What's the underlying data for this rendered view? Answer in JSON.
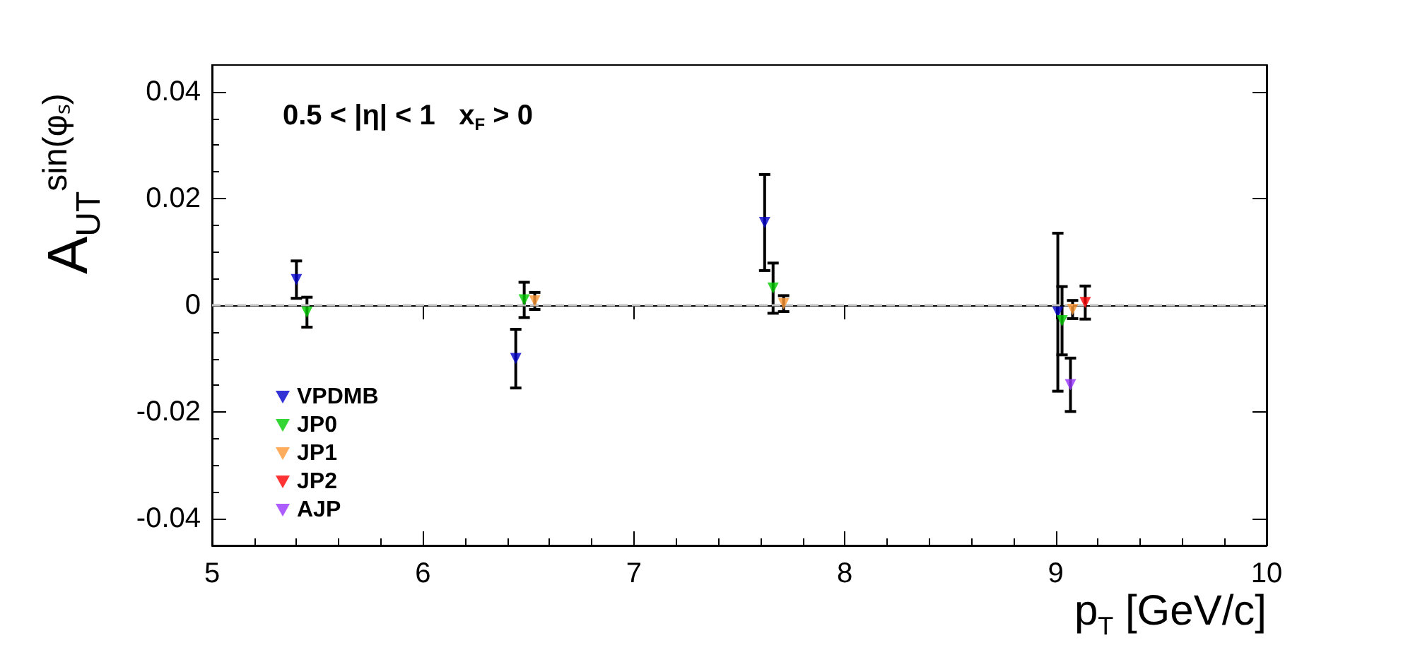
{
  "chart_data": {
    "type": "scatter",
    "xlabel": "p$_{T}$ [GeV/c]",
    "ylabel": "A$_{UT}$$^{sin(φₛ)}$",
    "annotations": [
      "0.5 < |η| < 1   x$_{F}$ > 0"
    ],
    "series": [
      {
        "name": "VPDMB",
        "color": "#0000cc",
        "x": [
          5.4,
          6.44,
          7.62,
          9.01
        ],
        "values": [
          0.0048,
          -0.01,
          0.0155,
          -0.0013
        ],
        "errors": [
          0.0035,
          0.0055,
          0.009,
          0.0148
        ]
      },
      {
        "name": "JP0",
        "color": "#00cc00",
        "x": [
          5.45,
          6.48,
          7.66,
          9.03
        ],
        "values": [
          -0.0013,
          0.001,
          0.0032,
          -0.0029
        ],
        "errors": [
          0.0028,
          0.0033,
          0.0047,
          0.0064
        ]
      },
      {
        "name": "JP1",
        "color": "#ff9933",
        "x": [
          6.53,
          7.71,
          9.08
        ],
        "values": [
          0.0008,
          0.0003,
          -0.0008
        ],
        "errors": [
          0.0016,
          0.0015,
          0.0017
        ]
      },
      {
        "name": "JP2",
        "color": "#ff0000",
        "x": [
          9.14
        ],
        "values": [
          0.0005
        ],
        "errors": [
          0.0031
        ]
      },
      {
        "name": "AJP",
        "color": "#9933ff",
        "x": [
          9.07
        ],
        "values": [
          -0.0149
        ],
        "errors": [
          0.005
        ]
      }
    ],
    "xlim": [
      5,
      10
    ],
    "xticks": [
      5,
      6,
      7,
      8,
      9,
      10
    ],
    "ylim": [
      -0.045,
      0.045
    ],
    "yticks": [
      -0.04,
      -0.02,
      0,
      0.02,
      0.04
    ],
    "ref_lines": [
      {
        "axis": "y",
        "value": 0,
        "label": null,
        "color": "#c0c0c0",
        "line_style": "dashed"
      }
    ],
    "marker": "triangle",
    "legend": "bottom left",
    "grid": false
  }
}
